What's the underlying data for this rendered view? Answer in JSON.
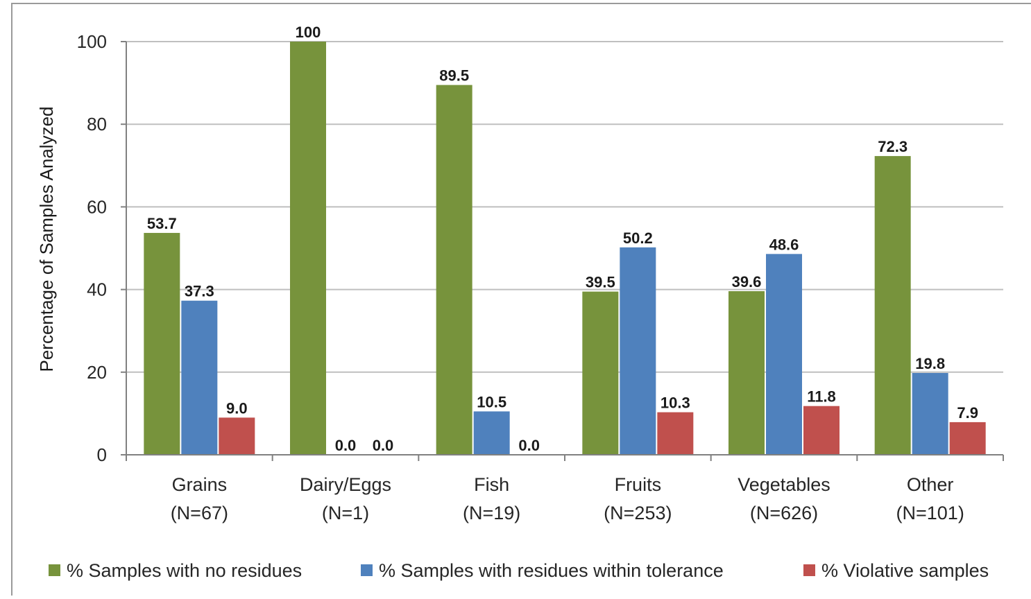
{
  "colors": {
    "no_residues": "#77933C",
    "within_tolerance": "#4F81BD",
    "violative": "#C0504D",
    "gridline": "#bfbfbf",
    "axis": "#808080",
    "frame": "#9a9a9a"
  },
  "chart_data": {
    "type": "bar",
    "title": "",
    "xlabel": "",
    "ylabel": "Percentage of Samples Analyzed",
    "ylim": [
      0,
      100
    ],
    "yticks": [
      0,
      20,
      40,
      60,
      80,
      100
    ],
    "grid": true,
    "legend_position": "bottom",
    "categories": [
      {
        "name": "Grains",
        "n": "(N=67)"
      },
      {
        "name": "Dairy/Eggs",
        "n": "(N=1)"
      },
      {
        "name": "Fish",
        "n": "(N=19)"
      },
      {
        "name": "Fruits",
        "n": "(N=253)"
      },
      {
        "name": "Vegetables",
        "n": "(N=626)"
      },
      {
        "name": "Other",
        "n": "(N=101)"
      }
    ],
    "series": [
      {
        "name": "% Samples with no residues",
        "color": "#77933C",
        "values": [
          53.7,
          100,
          89.5,
          39.5,
          39.6,
          72.3
        ],
        "labels": [
          "53.7",
          "100",
          "89.5",
          "39.5",
          "39.6",
          "72.3"
        ]
      },
      {
        "name": "% Samples with residues within tolerance",
        "color": "#4F81BD",
        "values": [
          37.3,
          0.0,
          10.5,
          50.2,
          48.6,
          19.8
        ],
        "labels": [
          "37.3",
          "0.0",
          "10.5",
          "50.2",
          "48.6",
          "19.8"
        ]
      },
      {
        "name": "% Violative samples",
        "color": "#C0504D",
        "values": [
          9.0,
          0.0,
          0.0,
          10.3,
          11.8,
          7.9
        ],
        "labels": [
          "9.0",
          "0.0",
          "0.0",
          "10.3",
          "11.8",
          "7.9"
        ]
      }
    ]
  }
}
